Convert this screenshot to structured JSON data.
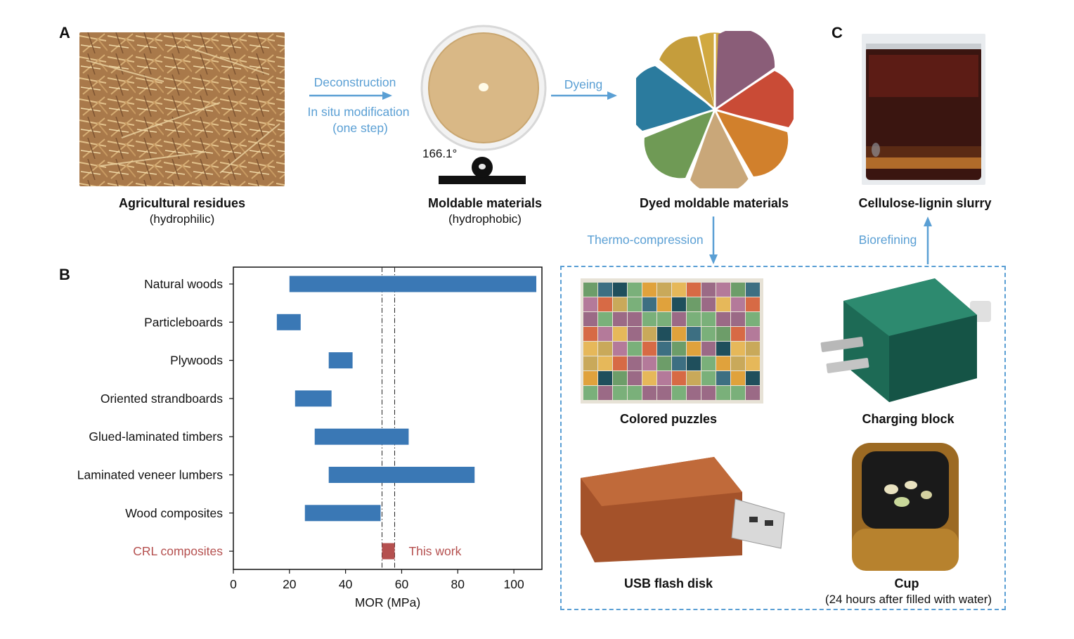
{
  "panels": {
    "a": "A",
    "b": "B",
    "c": "C"
  },
  "panel_a": {
    "residues": {
      "title": "Agricultural residues",
      "subtitle": "(hydrophilic)"
    },
    "arrow1": {
      "line1": "Deconstruction",
      "line2": "In situ modification",
      "line3": "(one step)"
    },
    "moldable": {
      "title": "Moldable materials",
      "subtitle": "(hydrophobic)",
      "contact_angle": "166.1°"
    },
    "arrow2": {
      "label": "Dyeing"
    },
    "dyed": {
      "title": "Dyed moldable materials"
    }
  },
  "panel_c": {
    "slurry": {
      "title": "Cellulose-lignin slurry"
    },
    "thermo_label": "Thermo-compression",
    "biorefining_label": "Biorefining",
    "products": {
      "puzzles": "Colored puzzles",
      "charging": "Charging block",
      "usb": "USB flash disk",
      "cup": "Cup",
      "cup_note": "(24 hours after filled with water)"
    }
  },
  "colors": {
    "bar": "#3a78b5",
    "highlight": "#b5504f",
    "arrow_blue": "#5a9fd4"
  },
  "chart_data": {
    "type": "bar",
    "orientation": "horizontal",
    "xlabel": "MOR (MPa)",
    "ylabel": "",
    "xlim": [
      0,
      110
    ],
    "xticks": [
      0,
      20,
      40,
      60,
      80,
      100
    ],
    "categories": [
      "Natural woods",
      "Particleboards",
      "Plywoods",
      "Oriented strandboards",
      "Glued-laminated timbers",
      "Laminated veneer lumbers",
      "Wood composites",
      "CRL composites"
    ],
    "ranges": [
      [
        20,
        108
      ],
      [
        15.5,
        24
      ],
      [
        34,
        42.5
      ],
      [
        22,
        35
      ],
      [
        29,
        62.5
      ],
      [
        34,
        86
      ],
      [
        25.5,
        52.5
      ],
      [
        53,
        57.5
      ]
    ],
    "reference_lines": [
      53,
      57.5
    ],
    "annotation": "This work",
    "highlight_category": "CRL composites"
  }
}
